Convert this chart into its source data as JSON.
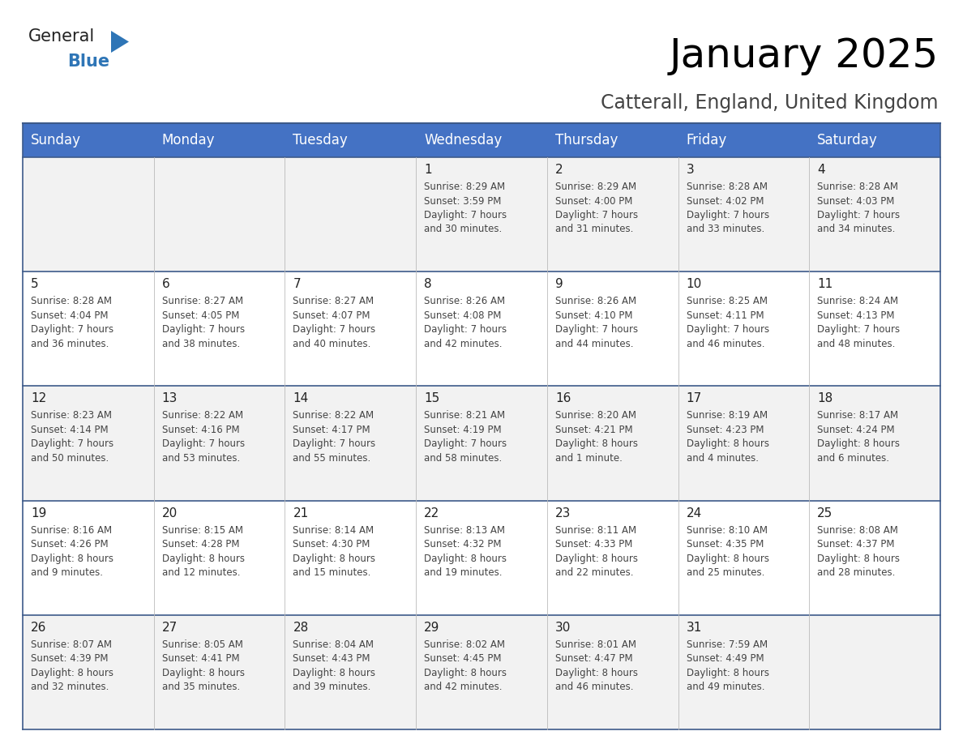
{
  "title": "January 2025",
  "subtitle": "Catterall, England, United Kingdom",
  "days_of_week": [
    "Sunday",
    "Monday",
    "Tuesday",
    "Wednesday",
    "Thursday",
    "Friday",
    "Saturday"
  ],
  "header_bg": "#4472C4",
  "header_text": "#FFFFFF",
  "cell_bg_odd": "#F2F2F2",
  "cell_bg_even": "#FFFFFF",
  "border_color": "#3D5A8A",
  "text_color": "#444444",
  "day_number_color": "#222222",
  "calendar_data": [
    [
      {
        "day": null,
        "info": null
      },
      {
        "day": null,
        "info": null
      },
      {
        "day": null,
        "info": null
      },
      {
        "day": 1,
        "info": "Sunrise: 8:29 AM\nSunset: 3:59 PM\nDaylight: 7 hours\nand 30 minutes."
      },
      {
        "day": 2,
        "info": "Sunrise: 8:29 AM\nSunset: 4:00 PM\nDaylight: 7 hours\nand 31 minutes."
      },
      {
        "day": 3,
        "info": "Sunrise: 8:28 AM\nSunset: 4:02 PM\nDaylight: 7 hours\nand 33 minutes."
      },
      {
        "day": 4,
        "info": "Sunrise: 8:28 AM\nSunset: 4:03 PM\nDaylight: 7 hours\nand 34 minutes."
      }
    ],
    [
      {
        "day": 5,
        "info": "Sunrise: 8:28 AM\nSunset: 4:04 PM\nDaylight: 7 hours\nand 36 minutes."
      },
      {
        "day": 6,
        "info": "Sunrise: 8:27 AM\nSunset: 4:05 PM\nDaylight: 7 hours\nand 38 minutes."
      },
      {
        "day": 7,
        "info": "Sunrise: 8:27 AM\nSunset: 4:07 PM\nDaylight: 7 hours\nand 40 minutes."
      },
      {
        "day": 8,
        "info": "Sunrise: 8:26 AM\nSunset: 4:08 PM\nDaylight: 7 hours\nand 42 minutes."
      },
      {
        "day": 9,
        "info": "Sunrise: 8:26 AM\nSunset: 4:10 PM\nDaylight: 7 hours\nand 44 minutes."
      },
      {
        "day": 10,
        "info": "Sunrise: 8:25 AM\nSunset: 4:11 PM\nDaylight: 7 hours\nand 46 minutes."
      },
      {
        "day": 11,
        "info": "Sunrise: 8:24 AM\nSunset: 4:13 PM\nDaylight: 7 hours\nand 48 minutes."
      }
    ],
    [
      {
        "day": 12,
        "info": "Sunrise: 8:23 AM\nSunset: 4:14 PM\nDaylight: 7 hours\nand 50 minutes."
      },
      {
        "day": 13,
        "info": "Sunrise: 8:22 AM\nSunset: 4:16 PM\nDaylight: 7 hours\nand 53 minutes."
      },
      {
        "day": 14,
        "info": "Sunrise: 8:22 AM\nSunset: 4:17 PM\nDaylight: 7 hours\nand 55 minutes."
      },
      {
        "day": 15,
        "info": "Sunrise: 8:21 AM\nSunset: 4:19 PM\nDaylight: 7 hours\nand 58 minutes."
      },
      {
        "day": 16,
        "info": "Sunrise: 8:20 AM\nSunset: 4:21 PM\nDaylight: 8 hours\nand 1 minute."
      },
      {
        "day": 17,
        "info": "Sunrise: 8:19 AM\nSunset: 4:23 PM\nDaylight: 8 hours\nand 4 minutes."
      },
      {
        "day": 18,
        "info": "Sunrise: 8:17 AM\nSunset: 4:24 PM\nDaylight: 8 hours\nand 6 minutes."
      }
    ],
    [
      {
        "day": 19,
        "info": "Sunrise: 8:16 AM\nSunset: 4:26 PM\nDaylight: 8 hours\nand 9 minutes."
      },
      {
        "day": 20,
        "info": "Sunrise: 8:15 AM\nSunset: 4:28 PM\nDaylight: 8 hours\nand 12 minutes."
      },
      {
        "day": 21,
        "info": "Sunrise: 8:14 AM\nSunset: 4:30 PM\nDaylight: 8 hours\nand 15 minutes."
      },
      {
        "day": 22,
        "info": "Sunrise: 8:13 AM\nSunset: 4:32 PM\nDaylight: 8 hours\nand 19 minutes."
      },
      {
        "day": 23,
        "info": "Sunrise: 8:11 AM\nSunset: 4:33 PM\nDaylight: 8 hours\nand 22 minutes."
      },
      {
        "day": 24,
        "info": "Sunrise: 8:10 AM\nSunset: 4:35 PM\nDaylight: 8 hours\nand 25 minutes."
      },
      {
        "day": 25,
        "info": "Sunrise: 8:08 AM\nSunset: 4:37 PM\nDaylight: 8 hours\nand 28 minutes."
      }
    ],
    [
      {
        "day": 26,
        "info": "Sunrise: 8:07 AM\nSunset: 4:39 PM\nDaylight: 8 hours\nand 32 minutes."
      },
      {
        "day": 27,
        "info": "Sunrise: 8:05 AM\nSunset: 4:41 PM\nDaylight: 8 hours\nand 35 minutes."
      },
      {
        "day": 28,
        "info": "Sunrise: 8:04 AM\nSunset: 4:43 PM\nDaylight: 8 hours\nand 39 minutes."
      },
      {
        "day": 29,
        "info": "Sunrise: 8:02 AM\nSunset: 4:45 PM\nDaylight: 8 hours\nand 42 minutes."
      },
      {
        "day": 30,
        "info": "Sunrise: 8:01 AM\nSunset: 4:47 PM\nDaylight: 8 hours\nand 46 minutes."
      },
      {
        "day": 31,
        "info": "Sunrise: 7:59 AM\nSunset: 4:49 PM\nDaylight: 8 hours\nand 49 minutes."
      },
      {
        "day": null,
        "info": null
      }
    ]
  ],
  "logo_general_color": "#222222",
  "logo_blue_color": "#2E75B6",
  "logo_triangle_color": "#2E75B6",
  "title_fontsize": 36,
  "subtitle_fontsize": 17,
  "header_fontsize": 12,
  "day_num_fontsize": 11,
  "info_fontsize": 8.5
}
